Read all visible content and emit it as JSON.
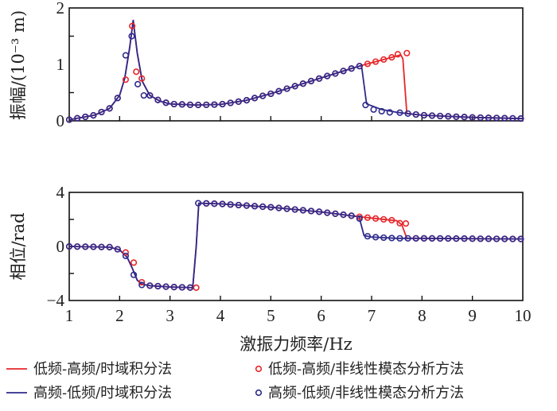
{
  "chart_data": [
    {
      "type": "line",
      "title": "",
      "ylabel": "振幅/(10⁻³ m)",
      "xlabel": "",
      "xlim": [
        1,
        10
      ],
      "ylim": [
        0,
        2
      ],
      "yticks": [
        "0",
        "1",
        "2"
      ],
      "ytick_values": [
        0,
        1,
        2
      ],
      "yminor": [
        0.5,
        1.5
      ],
      "grid": false,
      "series": [
        {
          "name": "低频-高频/时域积分法",
          "kind": "line",
          "color": "#e8262a",
          "x": [
            1,
            1.5,
            1.8,
            2.0,
            2.1,
            2.2,
            2.27,
            2.35,
            2.45,
            2.6,
            2.8,
            3.0,
            3.5,
            4.0,
            4.5,
            5.0,
            5.5,
            6.0,
            6.5,
            6.8,
            7.0,
            7.3,
            7.5,
            7.58,
            7.62,
            7.7,
            8,
            9,
            10
          ],
          "y": [
            0.02,
            0.1,
            0.22,
            0.45,
            0.75,
            1.3,
            1.78,
            1.2,
            0.7,
            0.45,
            0.35,
            0.3,
            0.28,
            0.29,
            0.36,
            0.48,
            0.62,
            0.76,
            0.9,
            0.98,
            1.03,
            1.1,
            1.15,
            1.17,
            1.1,
            0.13,
            0.1,
            0.06,
            0.04
          ]
        },
        {
          "name": "高频-低频/时域积分法",
          "kind": "line",
          "color": "#2e2a8c",
          "x": [
            1,
            1.5,
            1.8,
            2.0,
            2.1,
            2.2,
            2.27,
            2.35,
            2.45,
            2.6,
            2.8,
            3.0,
            3.5,
            4.0,
            4.5,
            5.0,
            5.5,
            6.0,
            6.5,
            6.8,
            6.9,
            7.2,
            7.5,
            8,
            9,
            10
          ],
          "y": [
            0.02,
            0.1,
            0.22,
            0.45,
            0.75,
            1.3,
            1.78,
            1.2,
            0.7,
            0.45,
            0.35,
            0.3,
            0.28,
            0.29,
            0.36,
            0.48,
            0.62,
            0.76,
            0.9,
            0.98,
            0.3,
            0.2,
            0.15,
            0.1,
            0.06,
            0.04
          ]
        },
        {
          "name": "低频-高频/非线性模态分析方法",
          "kind": "markers",
          "color": "#e8262a",
          "follows": 0,
          "x_start": 1,
          "x_step": 0.16,
          "x_end": 10,
          "overrides": [
            [
              2.12,
              0.73
            ],
            [
              2.25,
              1.68
            ],
            [
              2.33,
              0.87
            ],
            [
              7.52,
              1.18
            ],
            [
              7.7,
              1.2
            ]
          ]
        },
        {
          "name": "高频-低频/非线性模态分析方法",
          "kind": "markers",
          "color": "#2e2a8c",
          "follows": 1,
          "x_start": 1,
          "x_step": 0.16,
          "x_end": 10,
          "overrides": [
            [
              2.12,
              1.16
            ],
            [
              2.24,
              1.5
            ],
            [
              2.36,
              0.65
            ],
            [
              2.48,
              0.45
            ],
            [
              6.88,
              0.28
            ],
            [
              7.04,
              0.2
            ],
            [
              7.2,
              0.17
            ],
            [
              7.36,
              0.15
            ]
          ]
        }
      ]
    },
    {
      "type": "line",
      "title": "",
      "ylabel": "相位/rad",
      "xlabel": "激振力频率/Hz",
      "xlim": [
        1,
        10
      ],
      "ylim": [
        -4,
        4
      ],
      "xticks": [
        "1",
        "2",
        "3",
        "4",
        "5",
        "6",
        "7",
        "8",
        "9",
        "10"
      ],
      "xtick_values": [
        1,
        2,
        3,
        4,
        5,
        6,
        7,
        8,
        9,
        10
      ],
      "yticks": [
        "−4",
        "0",
        "4"
      ],
      "ytick_values": [
        -4,
        0,
        4
      ],
      "yminor": [
        -2,
        2
      ],
      "grid": false,
      "series": [
        {
          "name": "低频-高频/时域积分法",
          "kind": "line",
          "color": "#e8262a",
          "x": [
            1,
            1.8,
            2.0,
            2.15,
            2.25,
            2.35,
            2.45,
            2.6,
            3.0,
            3.45,
            3.52,
            3.57,
            4,
            5,
            6,
            6.75,
            7.0,
            7.5,
            7.6,
            7.7,
            8,
            10
          ],
          "y": [
            0,
            -0.05,
            -0.25,
            -0.8,
            -1.6,
            -2.5,
            -2.8,
            -2.9,
            -3.0,
            -3.05,
            0,
            3.2,
            3.15,
            2.9,
            2.55,
            2.2,
            2.1,
            1.9,
            1.6,
            0.6,
            0.6,
            0.55
          ]
        },
        {
          "name": "高频-低频/时域积分法",
          "kind": "line",
          "color": "#2e2a8c",
          "x": [
            1,
            1.8,
            2.0,
            2.15,
            2.25,
            2.35,
            2.45,
            2.6,
            3.0,
            3.45,
            3.52,
            3.57,
            4,
            5,
            6,
            6.75,
            6.85,
            7.0,
            7.5,
            8,
            10
          ],
          "y": [
            0,
            -0.05,
            -0.25,
            -0.8,
            -1.6,
            -2.5,
            -2.8,
            -2.9,
            -3.0,
            -3.05,
            0,
            3.2,
            3.15,
            2.9,
            2.55,
            2.2,
            0.8,
            0.7,
            0.6,
            0.6,
            0.55
          ]
        },
        {
          "name": "低频-高频/非线性模态分析方法",
          "kind": "markers",
          "color": "#e8262a",
          "follows": 0,
          "x_start": 1,
          "x_step": 0.16,
          "x_end": 10,
          "overrides": [
            [
              2.12,
              -0.45
            ],
            [
              2.28,
              -1.2
            ],
            [
              2.44,
              -2.65
            ],
            [
              3.56,
              -3.1
            ],
            [
              7.68,
              1.7
            ],
            [
              3.52,
              -3.05
            ]
          ]
        },
        {
          "name": "高频-低频/非线性模态分析方法",
          "kind": "markers",
          "color": "#2e2a8c",
          "follows": 1,
          "x_start": 1,
          "x_step": 0.16,
          "x_end": 10,
          "overrides": [
            [
              2.12,
              -0.7
            ],
            [
              2.28,
              -2.1
            ],
            [
              2.44,
              -2.85
            ],
            [
              3.56,
              3.2
            ]
          ]
        }
      ]
    }
  ],
  "legend": [
    {
      "label": "低频-高频/时域积分法",
      "kind": "line",
      "color": "#e8262a"
    },
    {
      "label": "高频-低频/时域积分法",
      "kind": "line",
      "color": "#2e2a8c"
    },
    {
      "label": "低频-高频/非线性模态分析方法",
      "kind": "marker",
      "color": "#e8262a"
    },
    {
      "label": "高频-低频/非线性模态分析方法",
      "kind": "marker",
      "color": "#2e2a8c"
    }
  ],
  "legend_placement": "bottom"
}
